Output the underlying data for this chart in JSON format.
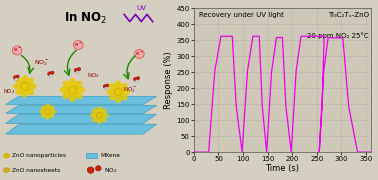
{
  "title_left": "In NO₂",
  "annotation1": "Recovery under UV light",
  "annotation2": "Ti₃C₂Tₓ-ZnO",
  "annotation3": "20 ppm NO₂ 25°C",
  "xlabel": "Time (s)",
  "ylabel": "Response (%)",
  "xlim": [
    0,
    360
  ],
  "ylim": [
    0,
    450
  ],
  "xticks": [
    0,
    50,
    100,
    150,
    200,
    250,
    300,
    350
  ],
  "yticks": [
    0,
    50,
    100,
    150,
    200,
    250,
    300,
    350,
    400,
    450
  ],
  "line_color": "#EE00EE",
  "bg_color": "#d4cfc0",
  "plot_bg_color": "#cdc8b8",
  "cycle_data": {
    "rise_starts": [
      30,
      98,
      148,
      198,
      255
    ],
    "rise_ends": [
      55,
      120,
      168,
      218,
      273
    ],
    "fall_starts": [
      78,
      133,
      180,
      265,
      303
    ],
    "fall_ends": [
      98,
      148,
      198,
      255,
      333
    ],
    "peak_vals": [
      362,
      362,
      358,
      362,
      357
    ]
  },
  "legend_items": [
    {
      "label": "ZnO nanoparticles",
      "color": "#d4b800",
      "shape": "blob"
    },
    {
      "label": "ZnO nanosheets",
      "color": "#c8a800",
      "shape": "blob"
    },
    {
      "label": "MXene",
      "color": "#6bbfde",
      "shape": "rect"
    },
    {
      "label": "NO₂",
      "color": "#cc2200",
      "shape": "circle"
    }
  ],
  "mxene_color": "#6bbfde",
  "mxene_edge_color": "#3a9fc0",
  "zno_color": "#e8c800",
  "uv_color": "#7700bb",
  "electron_color": "#ff6644",
  "no2_label_color": "#cc2200"
}
